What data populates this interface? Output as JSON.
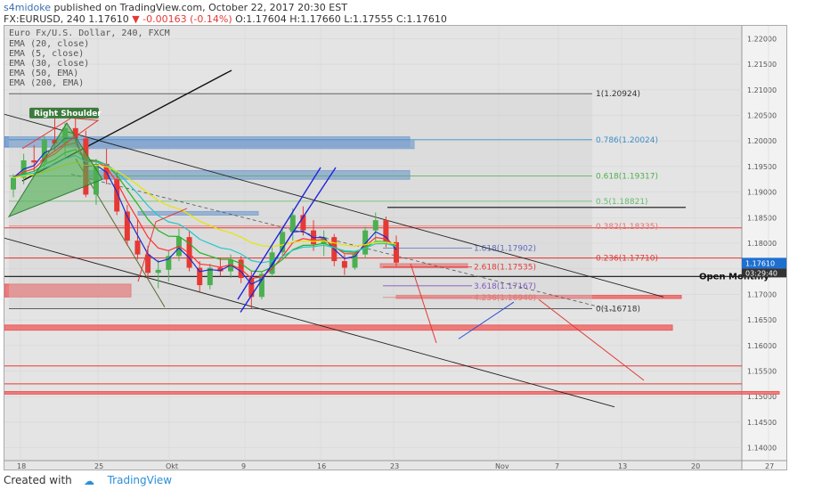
{
  "header": {
    "publisher_user": "s4midoke",
    "publisher_rest": " published on TradingView.com, October 22, 2017 20:30 EST",
    "symbol_line": "FX:EURUSD, 240 1.17610",
    "change": "▼ -0.00163 (-0.14%)",
    "ohlc": "O:1.17604 H:1.17660 L:1.17555 C:1.17610"
  },
  "legend": [
    "Euro Fx/U.S. Dollar, 240, FXCM",
    "EMA (20, close)",
    "EMA (5, close)",
    "EMA (30, close)",
    "EMA (50, EMA)",
    "EMA (200, EMA)"
  ],
  "footer": {
    "created_with": "Created with",
    "brand": "TradingView"
  },
  "colors": {
    "up": "#4caf50",
    "down": "#e53935",
    "accent": "#2a8fd8"
  },
  "chart_data": {
    "type": "candlestick",
    "symbol": "FX:EURUSD",
    "interval": "240",
    "last_price": 1.1761,
    "price_tag": "1.17610",
    "countdown": "03:29:40",
    "ylim": [
      1.1375,
      1.2225
    ],
    "y_ticks": [
      "1.22000",
      "1.21500",
      "1.21000",
      "1.20500",
      "1.20000",
      "1.19500",
      "1.19000",
      "1.18500",
      "1.18000",
      "1.17500",
      "1.17000",
      "1.16500",
      "1.16000",
      "1.15500",
      "1.15000",
      "1.14500",
      "1.14000"
    ],
    "x_ticks": [
      "18",
      "25",
      "Okt",
      "9",
      "16",
      "23",
      "Nov",
      "7",
      "13",
      "20",
      "27"
    ],
    "fib_levels": [
      {
        "label": "1(1.20924)",
        "value": 1.20924,
        "color": "#333333"
      },
      {
        "label": "0.786(1.20024)",
        "value": 1.20024,
        "color": "#3a8ec9"
      },
      {
        "label": "0.618(1.19317)",
        "value": 1.19317,
        "color": "#4caf50"
      },
      {
        "label": "0.5(1.18821)",
        "value": 1.18821,
        "color": "#66bb6a"
      },
      {
        "label": "0.382(1.18335)",
        "value": 1.18335,
        "color": "#e57373"
      },
      {
        "label": "0.236(1.17710)",
        "value": 1.1771,
        "color": "#e53935"
      },
      {
        "label": "0(1.16718)",
        "value": 1.16718,
        "color": "#333333"
      }
    ],
    "fib_ext": [
      {
        "label": "1.618(1.17902)",
        "value": 1.17902,
        "color": "#5c6bc0"
      },
      {
        "label": "2.618(1.17535)",
        "value": 1.17535,
        "color": "#e53935"
      },
      {
        "label": "3.618(1.17167)",
        "value": 1.17167,
        "color": "#7e57c2"
      },
      {
        "label": "4.236(1.16940)",
        "value": 1.1694,
        "color": "#e57373"
      }
    ],
    "annotations": [
      "Right Shoulder",
      "Open Monthly"
    ],
    "candles": [
      {
        "t": 0,
        "o": 1.1905,
        "h": 1.1935,
        "l": 1.189,
        "c": 1.1928
      },
      {
        "t": 1,
        "o": 1.1928,
        "h": 1.1975,
        "l": 1.1915,
        "c": 1.1962
      },
      {
        "t": 2,
        "o": 1.1962,
        "h": 1.1992,
        "l": 1.194,
        "c": 1.1958
      },
      {
        "t": 3,
        "o": 1.1958,
        "h": 1.201,
        "l": 1.195,
        "c": 1.2002
      },
      {
        "t": 4,
        "o": 1.2002,
        "h": 1.2055,
        "l": 1.198,
        "c": 1.1995
      },
      {
        "t": 5,
        "o": 1.1995,
        "h": 1.2035,
        "l": 1.197,
        "c": 1.2025
      },
      {
        "t": 6,
        "o": 1.2025,
        "h": 1.2062,
        "l": 1.1995,
        "c": 1.2005
      },
      {
        "t": 7,
        "o": 1.2005,
        "h": 1.202,
        "l": 1.189,
        "c": 1.1895
      },
      {
        "t": 8,
        "o": 1.1895,
        "h": 1.1965,
        "l": 1.1875,
        "c": 1.1955
      },
      {
        "t": 9,
        "o": 1.1955,
        "h": 1.1985,
        "l": 1.1915,
        "c": 1.1925
      },
      {
        "t": 10,
        "o": 1.1925,
        "h": 1.1938,
        "l": 1.1855,
        "c": 1.1862
      },
      {
        "t": 11,
        "o": 1.1862,
        "h": 1.1875,
        "l": 1.1795,
        "c": 1.1805
      },
      {
        "t": 12,
        "o": 1.1805,
        "h": 1.1845,
        "l": 1.1768,
        "c": 1.1778
      },
      {
        "t": 13,
        "o": 1.1778,
        "h": 1.1795,
        "l": 1.173,
        "c": 1.1742
      },
      {
        "t": 14,
        "o": 1.1742,
        "h": 1.1768,
        "l": 1.1712,
        "c": 1.1748
      },
      {
        "t": 15,
        "o": 1.1748,
        "h": 1.1785,
        "l": 1.1725,
        "c": 1.1775
      },
      {
        "t": 16,
        "o": 1.1775,
        "h": 1.1828,
        "l": 1.1765,
        "c": 1.1812
      },
      {
        "t": 17,
        "o": 1.1812,
        "h": 1.1825,
        "l": 1.1745,
        "c": 1.1752
      },
      {
        "t": 18,
        "o": 1.1752,
        "h": 1.1765,
        "l": 1.1705,
        "c": 1.1718
      },
      {
        "t": 19,
        "o": 1.1718,
        "h": 1.176,
        "l": 1.171,
        "c": 1.1752
      },
      {
        "t": 20,
        "o": 1.1752,
        "h": 1.1772,
        "l": 1.1735,
        "c": 1.1745
      },
      {
        "t": 21,
        "o": 1.1745,
        "h": 1.1778,
        "l": 1.1732,
        "c": 1.1768
      },
      {
        "t": 22,
        "o": 1.1768,
        "h": 1.1775,
        "l": 1.1722,
        "c": 1.1732
      },
      {
        "t": 23,
        "o": 1.1732,
        "h": 1.1745,
        "l": 1.1672,
        "c": 1.1695
      },
      {
        "t": 24,
        "o": 1.1695,
        "h": 1.1745,
        "l": 1.169,
        "c": 1.174
      },
      {
        "t": 25,
        "o": 1.174,
        "h": 1.1792,
        "l": 1.1735,
        "c": 1.1782
      },
      {
        "t": 26,
        "o": 1.1782,
        "h": 1.1832,
        "l": 1.1775,
        "c": 1.1822
      },
      {
        "t": 27,
        "o": 1.1822,
        "h": 1.1868,
        "l": 1.1805,
        "c": 1.1855
      },
      {
        "t": 28,
        "o": 1.1855,
        "h": 1.1872,
        "l": 1.1815,
        "c": 1.1825
      },
      {
        "t": 29,
        "o": 1.1825,
        "h": 1.1845,
        "l": 1.1785,
        "c": 1.1798
      },
      {
        "t": 30,
        "o": 1.1798,
        "h": 1.1825,
        "l": 1.1775,
        "c": 1.1812
      },
      {
        "t": 31,
        "o": 1.1812,
        "h": 1.1818,
        "l": 1.1755,
        "c": 1.1765
      },
      {
        "t": 32,
        "o": 1.1765,
        "h": 1.1778,
        "l": 1.1738,
        "c": 1.1752
      },
      {
        "t": 33,
        "o": 1.1752,
        "h": 1.1785,
        "l": 1.1748,
        "c": 1.1778
      },
      {
        "t": 34,
        "o": 1.1778,
        "h": 1.1832,
        "l": 1.177,
        "c": 1.1825
      },
      {
        "t": 35,
        "o": 1.1825,
        "h": 1.186,
        "l": 1.1805,
        "c": 1.1845
      },
      {
        "t": 36,
        "o": 1.1845,
        "h": 1.1852,
        "l": 1.1792,
        "c": 1.1802
      },
      {
        "t": 37,
        "o": 1.1802,
        "h": 1.1815,
        "l": 1.1755,
        "c": 1.1762
      }
    ]
  }
}
